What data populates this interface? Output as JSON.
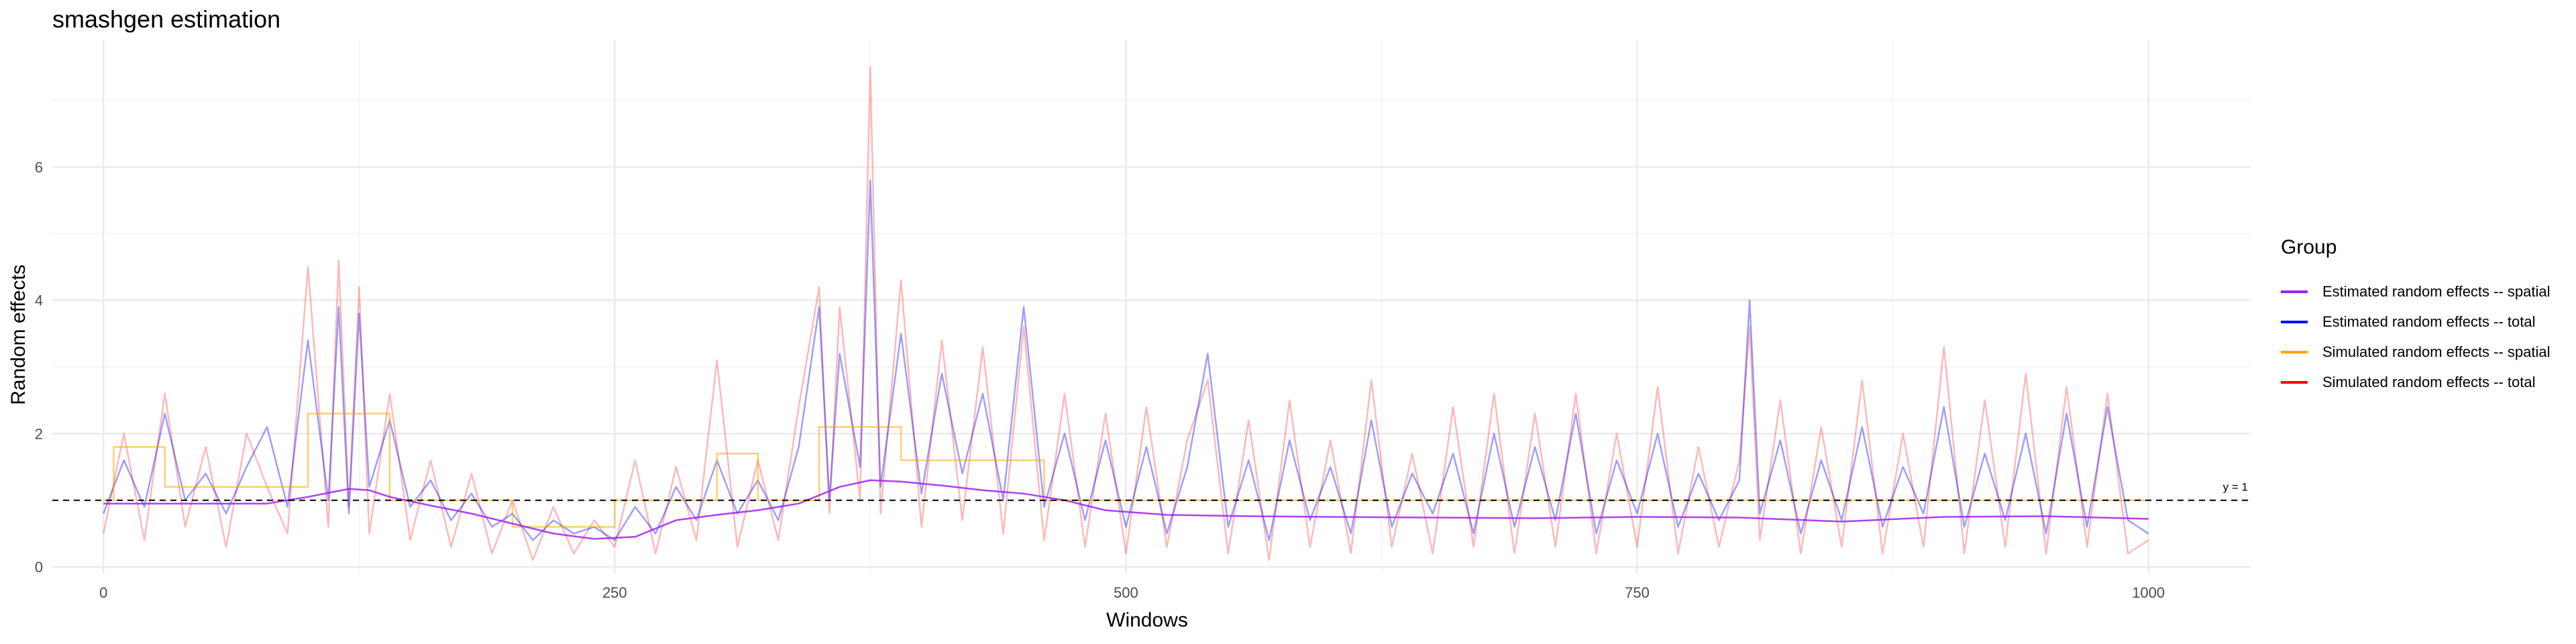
{
  "chart_data": {
    "type": "line",
    "title": "smashgen estimation",
    "xlabel": "Windows",
    "ylabel": "Random effects",
    "xlim": [
      -25,
      1050
    ],
    "ylim": [
      -0.1,
      7.9
    ],
    "x_ticks": [
      0,
      250,
      500,
      750,
      1000
    ],
    "y_ticks": [
      0,
      2,
      4,
      6
    ],
    "grid": true,
    "legend": {
      "title": "Group",
      "position": "right",
      "entries": [
        {
          "label": "Estimated random effects -- spatial",
          "color": "#a020f0"
        },
        {
          "label": "Estimated random effects -- total",
          "color": "#0000ff"
        },
        {
          "label": "Simulated random effects -- spatial",
          "color": "#ffa500"
        },
        {
          "label": "Simulated random effects -- total",
          "color": "#ff0000"
        }
      ]
    },
    "reference_line": {
      "y": 1,
      "label": "y = 1",
      "style": "dashed"
    },
    "series": [
      {
        "name": "Estimated random effects -- spatial",
        "color": "#a020f0",
        "x": [
          0,
          40,
          80,
          100,
          120,
          130,
          140,
          160,
          180,
          200,
          220,
          240,
          260,
          280,
          300,
          320,
          340,
          360,
          375,
          390,
          410,
          430,
          450,
          470,
          490,
          520,
          560,
          600,
          650,
          700,
          750,
          800,
          850,
          900,
          950,
          1000
        ],
        "y": [
          0.95,
          0.95,
          0.95,
          1.05,
          1.17,
          1.15,
          1.05,
          0.92,
          0.8,
          0.65,
          0.5,
          0.42,
          0.45,
          0.7,
          0.78,
          0.85,
          0.95,
          1.2,
          1.3,
          1.28,
          1.22,
          1.15,
          1.1,
          1.0,
          0.85,
          0.78,
          0.76,
          0.75,
          0.74,
          0.73,
          0.75,
          0.74,
          0.68,
          0.75,
          0.76,
          0.72
        ]
      },
      {
        "name": "Estimated random effects -- total",
        "color": "#0000ff",
        "x": [
          0,
          10,
          20,
          30,
          40,
          50,
          60,
          70,
          80,
          90,
          100,
          110,
          115,
          120,
          125,
          130,
          140,
          150,
          160,
          170,
          180,
          190,
          200,
          210,
          220,
          230,
          240,
          250,
          260,
          270,
          280,
          290,
          300,
          310,
          320,
          330,
          340,
          350,
          355,
          360,
          370,
          375,
          380,
          390,
          400,
          410,
          420,
          430,
          440,
          450,
          460,
          470,
          480,
          490,
          500,
          510,
          520,
          530,
          540,
          550,
          560,
          570,
          580,
          590,
          600,
          610,
          620,
          630,
          640,
          650,
          660,
          670,
          680,
          690,
          700,
          710,
          720,
          730,
          740,
          750,
          760,
          770,
          780,
          790,
          800,
          805,
          810,
          820,
          830,
          840,
          850,
          860,
          870,
          880,
          890,
          900,
          910,
          920,
          930,
          940,
          950,
          960,
          970,
          980,
          990,
          1000
        ],
        "y": [
          0.8,
          1.6,
          0.9,
          2.3,
          1.0,
          1.4,
          0.8,
          1.5,
          2.1,
          0.9,
          3.4,
          1.0,
          3.9,
          0.8,
          3.8,
          1.2,
          2.2,
          0.9,
          1.3,
          0.7,
          1.1,
          0.6,
          0.8,
          0.4,
          0.7,
          0.5,
          0.6,
          0.4,
          0.9,
          0.5,
          1.2,
          0.7,
          1.6,
          0.8,
          1.3,
          0.7,
          1.8,
          3.9,
          1.0,
          3.2,
          1.5,
          5.8,
          1.2,
          3.5,
          1.1,
          2.9,
          1.4,
          2.6,
          1.0,
          3.9,
          0.9,
          2.0,
          0.7,
          1.9,
          0.6,
          1.8,
          0.5,
          1.5,
          3.2,
          0.6,
          1.6,
          0.4,
          1.9,
          0.7,
          1.5,
          0.5,
          2.2,
          0.6,
          1.4,
          0.8,
          1.7,
          0.5,
          2.0,
          0.6,
          1.8,
          0.7,
          2.3,
          0.5,
          1.6,
          0.8,
          2.0,
          0.6,
          1.4,
          0.7,
          1.3,
          4.0,
          0.8,
          1.9,
          0.5,
          1.6,
          0.7,
          2.1,
          0.6,
          1.5,
          0.8,
          2.4,
          0.6,
          1.7,
          0.7,
          2.0,
          0.5,
          2.3,
          0.6,
          2.4,
          0.7,
          0.5
        ]
      },
      {
        "name": "Simulated random effects -- spatial",
        "color": "#ffa500",
        "x": [
          0,
          5,
          5,
          30,
          30,
          100,
          100,
          140,
          140,
          200,
          200,
          250,
          250,
          300,
          300,
          320,
          320,
          350,
          350,
          390,
          390,
          460,
          460,
          1000
        ],
        "y": [
          1.0,
          1.0,
          1.8,
          1.8,
          1.2,
          1.2,
          2.3,
          2.3,
          1.0,
          1.0,
          0.6,
          0.6,
          1.0,
          1.0,
          1.7,
          1.7,
          1.0,
          1.0,
          2.1,
          2.1,
          1.6,
          1.6,
          1.0,
          1.0
        ]
      },
      {
        "name": "Simulated random effects -- total",
        "color": "#ff0000",
        "x": [
          0,
          10,
          20,
          30,
          40,
          50,
          60,
          70,
          80,
          90,
          100,
          110,
          115,
          120,
          125,
          130,
          140,
          150,
          160,
          170,
          180,
          190,
          200,
          210,
          220,
          230,
          240,
          250,
          260,
          270,
          280,
          290,
          300,
          310,
          320,
          330,
          340,
          350,
          355,
          360,
          370,
          375,
          380,
          390,
          400,
          410,
          420,
          430,
          440,
          450,
          460,
          470,
          480,
          490,
          500,
          510,
          520,
          530,
          540,
          550,
          560,
          570,
          580,
          590,
          600,
          610,
          620,
          630,
          640,
          650,
          660,
          670,
          680,
          690,
          700,
          710,
          720,
          730,
          740,
          750,
          760,
          770,
          780,
          790,
          800,
          805,
          810,
          820,
          830,
          840,
          850,
          860,
          870,
          880,
          890,
          900,
          910,
          920,
          930,
          940,
          950,
          960,
          970,
          980,
          990,
          1000
        ],
        "y": [
          0.5,
          2.0,
          0.4,
          2.6,
          0.6,
          1.8,
          0.3,
          2.0,
          1.2,
          0.5,
          4.5,
          0.6,
          4.6,
          0.9,
          4.2,
          0.5,
          2.6,
          0.4,
          1.6,
          0.3,
          1.4,
          0.2,
          1.0,
          0.1,
          0.9,
          0.2,
          0.7,
          0.3,
          1.6,
          0.2,
          1.5,
          0.4,
          3.1,
          0.3,
          1.6,
          0.4,
          2.4,
          4.2,
          0.8,
          3.9,
          1.0,
          7.5,
          0.8,
          4.3,
          0.6,
          3.4,
          0.7,
          3.3,
          0.5,
          3.6,
          0.4,
          2.6,
          0.3,
          2.3,
          0.2,
          2.4,
          0.3,
          1.9,
          2.8,
          0.2,
          2.2,
          0.1,
          2.5,
          0.3,
          1.9,
          0.2,
          2.8,
          0.3,
          1.7,
          0.2,
          2.4,
          0.3,
          2.6,
          0.2,
          2.3,
          0.3,
          2.6,
          0.2,
          2.0,
          0.3,
          2.7,
          0.2,
          1.8,
          0.3,
          1.6,
          3.6,
          0.4,
          2.5,
          0.2,
          2.1,
          0.3,
          2.8,
          0.2,
          2.0,
          0.3,
          3.3,
          0.2,
          2.5,
          0.3,
          2.9,
          0.2,
          2.7,
          0.3,
          2.6,
          0.2,
          0.4
        ]
      }
    ]
  }
}
